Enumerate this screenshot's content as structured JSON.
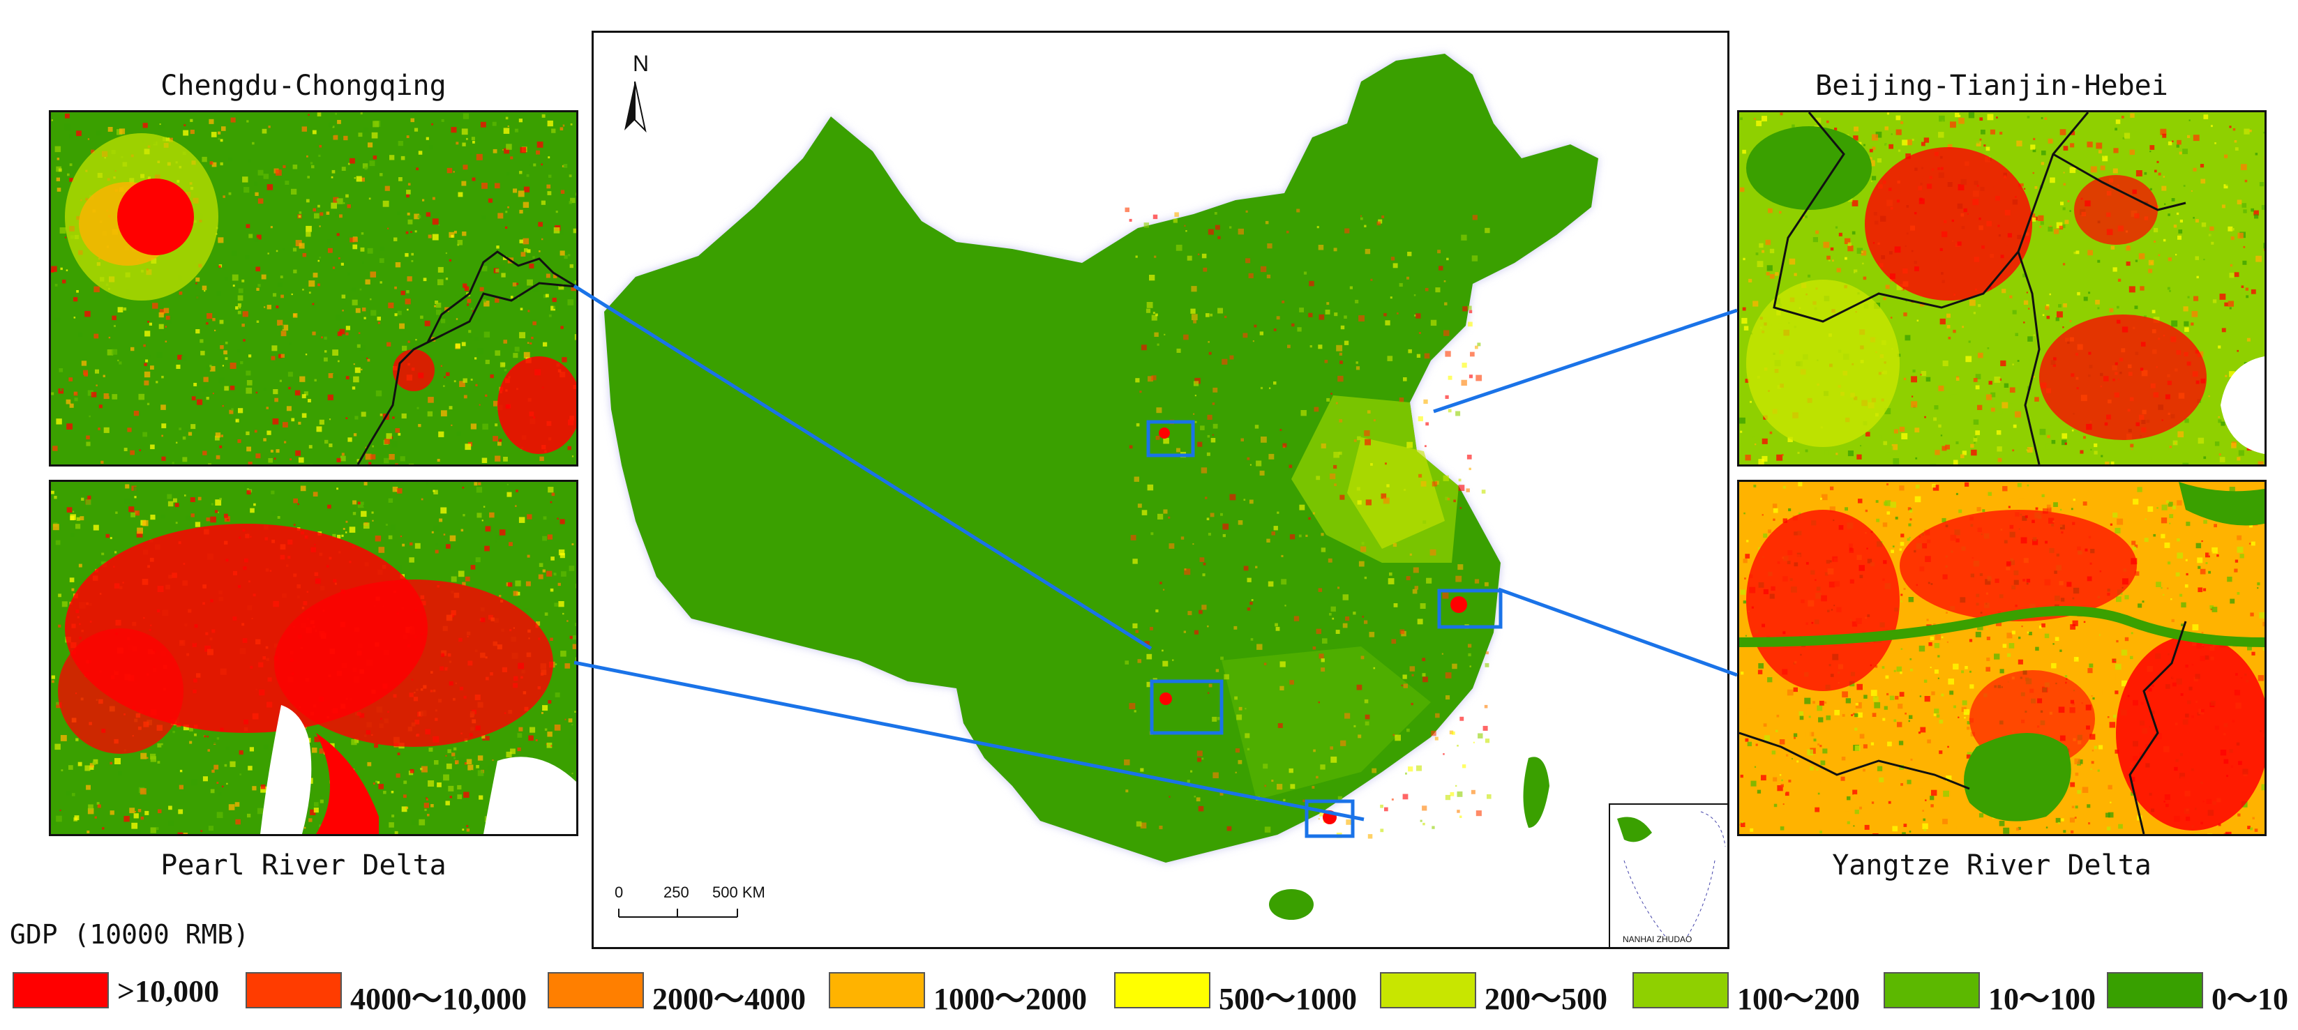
{
  "panels": {
    "top_left": {
      "title": "Chengdu-Chongqing"
    },
    "bottom_left": {
      "title": "Pearl River Delta"
    },
    "top_right": {
      "title": "Beijing-Tianjin-Hebei"
    },
    "bottom_right": {
      "title": "Yangtze River Delta"
    }
  },
  "main_map": {
    "north_label": "N",
    "scale": {
      "ticks": [
        "0",
        "250",
        "500 KM"
      ]
    },
    "inset_label": "NANHAI ZHUDAO"
  },
  "legend": {
    "title": "GDP (10000 RMB)",
    "items": [
      {
        "label": ">10,000",
        "color": "#ff0000"
      },
      {
        "label": "4000～10,000",
        "color": "#ff3c00"
      },
      {
        "label": "2000～4000",
        "color": "#ff7f00"
      },
      {
        "label": "1000～2000",
        "color": "#ffb300"
      },
      {
        "label": "500～1000",
        "color": "#ffff00"
      },
      {
        "label": "200～500",
        "color": "#c8e600"
      },
      {
        "label": "100～200",
        "color": "#8fd000"
      },
      {
        "label": "10～100",
        "color": "#5cb800"
      },
      {
        "label": "0～10",
        "color": "#38a000"
      }
    ]
  },
  "colors": {
    "connector": "#1a73e8",
    "boundary": "#111111",
    "water": "#ffffff"
  }
}
